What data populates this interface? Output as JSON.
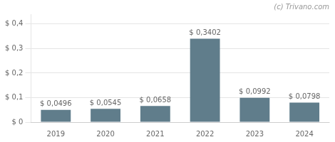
{
  "chart_data": {
    "type": "bar",
    "categories": [
      "2019",
      "2020",
      "2021",
      "2022",
      "2023",
      "2024"
    ],
    "values": [
      0.0496,
      0.0545,
      0.0658,
      0.3402,
      0.0992,
      0.0798
    ],
    "value_labels": [
      "$ 0,0496",
      "$ 0,0545",
      "$ 0,0658",
      "$ 0,3402",
      "$ 0,0992",
      "$ 0,0798"
    ],
    "data_labels": true,
    "color": "#607d8b",
    "ylim": [
      0,
      0.44
    ],
    "yticks": [
      {
        "value": 0.0,
        "label": "$ 0"
      },
      {
        "value": 0.1,
        "label": "$ 0,1"
      },
      {
        "value": 0.2,
        "label": "$ 0,2"
      },
      {
        "value": 0.3,
        "label": "$ 0,3"
      },
      {
        "value": 0.4,
        "label": "$ 0,4"
      }
    ],
    "grid": true,
    "annotations": [
      "(c) Trivano.com"
    ]
  }
}
